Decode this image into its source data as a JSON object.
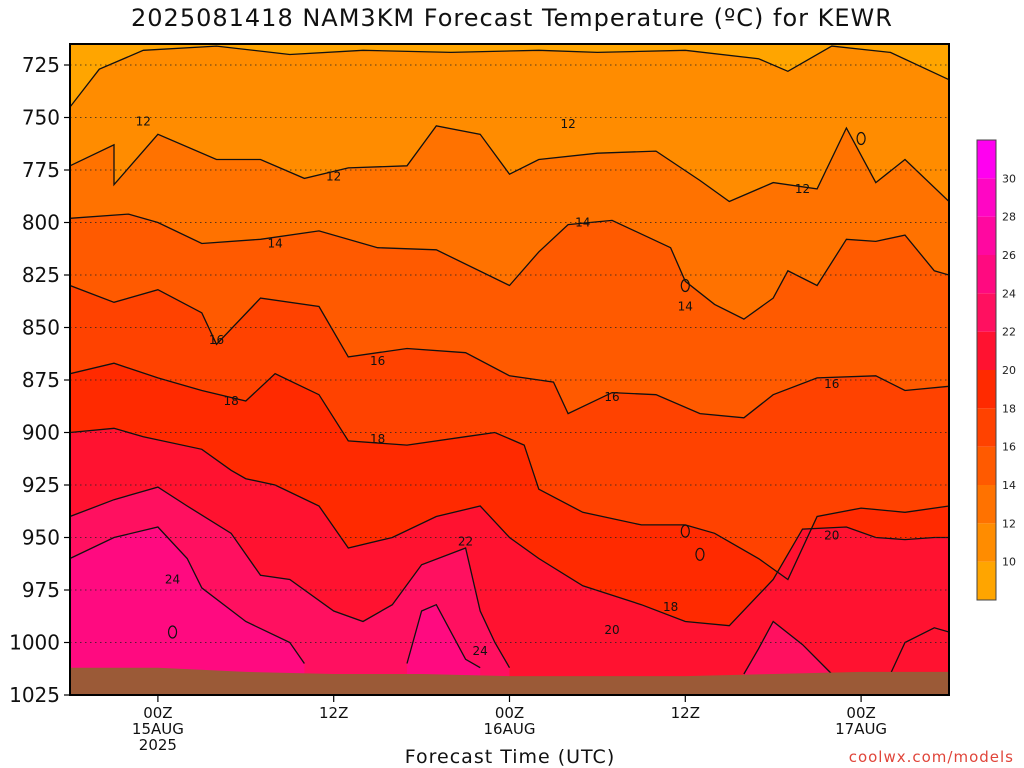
{
  "title": "2025081418 NAM3KM Forecast Temperature (ºC) for KEWR",
  "xlabel": "Forecast Time (UTC)",
  "credit": "coolwx.com/models",
  "chart_data": {
    "type": "heatmap",
    "subtype": "time-pressure contour cross-section",
    "title": "2025081418 NAM3KM Forecast Temperature (ºC) for KEWR",
    "xlabel": "Forecast Time (UTC)",
    "ylabel": "",
    "y_axis": {
      "inverted": true,
      "ylim": [
        1025,
        715
      ],
      "ticks": [
        725,
        750,
        775,
        800,
        825,
        850,
        875,
        900,
        925,
        950,
        975,
        1000,
        1025
      ]
    },
    "x_axis": {
      "xlim": [
        -6,
        54
      ],
      "ticks": [
        {
          "hours": 0,
          "lines": [
            "00Z",
            "15AUG",
            "2025"
          ]
        },
        {
          "hours": 12,
          "lines": [
            "12Z"
          ]
        },
        {
          "hours": 24,
          "lines": [
            "00Z",
            "16AUG"
          ]
        },
        {
          "hours": 36,
          "lines": [
            "12Z"
          ]
        },
        {
          "hours": 48,
          "lines": [
            "00Z",
            "17AUG"
          ]
        }
      ]
    },
    "grid": "dotted horizontal at y ticks",
    "colorbar": {
      "placement": "right",
      "range": [
        8,
        32
      ],
      "labels": [
        10,
        12,
        14,
        16,
        18,
        20,
        22,
        24,
        26,
        28,
        30
      ],
      "bands": [
        {
          "from": 8,
          "to": 10,
          "color": "#ffa500"
        },
        {
          "from": 10,
          "to": 12,
          "color": "#ff8c00"
        },
        {
          "from": 12,
          "to": 14,
          "color": "#ff7200"
        },
        {
          "from": 14,
          "to": 16,
          "color": "#ff5a00"
        },
        {
          "from": 16,
          "to": 18,
          "color": "#ff4200"
        },
        {
          "from": 18,
          "to": 20,
          "color": "#ff2a00"
        },
        {
          "from": 20,
          "to": 22,
          "color": "#ff1230"
        },
        {
          "from": 22,
          "to": 24,
          "color": "#ff1060"
        },
        {
          "from": 24,
          "to": 26,
          "color": "#ff0a80"
        },
        {
          "from": 26,
          "to": 28,
          "color": "#ff08a0"
        },
        {
          "from": 28,
          "to": 30,
          "color": "#ff06c4"
        },
        {
          "from": 30,
          "to": 32,
          "color": "#ff00f0"
        }
      ]
    },
    "ground_color": "#9b5a37",
    "ground_level": [
      {
        "x": -6,
        "p": 1012
      },
      {
        "x": 0,
        "p": 1012
      },
      {
        "x": 6,
        "p": 1014
      },
      {
        "x": 12,
        "p": 1015
      },
      {
        "x": 18,
        "p": 1015
      },
      {
        "x": 24,
        "p": 1016
      },
      {
        "x": 30,
        "p": 1016
      },
      {
        "x": 36,
        "p": 1016
      },
      {
        "x": 42,
        "p": 1015
      },
      {
        "x": 48,
        "p": 1014
      },
      {
        "x": 54,
        "p": 1014
      }
    ],
    "contours": [
      {
        "value": 10,
        "points": [
          [
            -6,
            745
          ],
          [
            -4,
            727
          ],
          [
            -1,
            718
          ],
          [
            4,
            716
          ],
          [
            9,
            720
          ],
          [
            14,
            718
          ],
          [
            20,
            719
          ],
          [
            26,
            718
          ],
          [
            30,
            719
          ],
          [
            36,
            718
          ],
          [
            41,
            722
          ],
          [
            43,
            728
          ],
          [
            46,
            716
          ],
          [
            50,
            719
          ],
          [
            54,
            732
          ]
        ]
      },
      {
        "value": 12,
        "points": [
          [
            -6,
            773
          ],
          [
            -3,
            763
          ],
          [
            -3,
            782
          ],
          [
            0,
            758
          ],
          [
            4,
            770
          ],
          [
            7,
            770
          ],
          [
            10,
            779
          ],
          [
            13,
            774
          ],
          [
            17,
            773
          ],
          [
            19,
            754
          ],
          [
            22,
            758
          ],
          [
            24,
            777
          ],
          [
            26,
            770
          ],
          [
            30,
            767
          ],
          [
            34,
            766
          ],
          [
            37,
            780
          ],
          [
            39,
            790
          ],
          [
            42,
            781
          ],
          [
            45,
            784
          ],
          [
            47,
            755
          ],
          [
            49,
            781
          ],
          [
            51,
            770
          ],
          [
            54,
            790
          ]
        ]
      },
      {
        "value": 14,
        "points": [
          [
            -6,
            798
          ],
          [
            -2,
            796
          ],
          [
            0,
            800
          ],
          [
            3,
            810
          ],
          [
            7,
            808
          ],
          [
            11,
            804
          ],
          [
            15,
            812
          ],
          [
            19,
            813
          ],
          [
            24,
            830
          ],
          [
            26,
            814
          ],
          [
            28,
            801
          ],
          [
            31,
            799
          ],
          [
            35,
            812
          ],
          [
            36,
            828
          ],
          [
            38,
            839
          ],
          [
            40,
            846
          ],
          [
            42,
            836
          ],
          [
            43,
            823
          ],
          [
            45,
            830
          ],
          [
            47,
            808
          ],
          [
            49,
            809
          ],
          [
            51,
            806
          ],
          [
            53,
            823
          ],
          [
            54,
            825
          ]
        ]
      },
      {
        "value": 16,
        "points": [
          [
            -6,
            830
          ],
          [
            -3,
            838
          ],
          [
            0,
            832
          ],
          [
            3,
            843
          ],
          [
            4,
            858
          ],
          [
            7,
            836
          ],
          [
            11,
            840
          ],
          [
            13,
            864
          ],
          [
            17,
            860
          ],
          [
            21,
            862
          ],
          [
            24,
            873
          ],
          [
            27,
            876
          ],
          [
            28,
            891
          ],
          [
            31,
            881
          ],
          [
            34,
            882
          ],
          [
            37,
            891
          ],
          [
            40,
            893
          ],
          [
            42,
            882
          ],
          [
            45,
            874
          ],
          [
            49,
            873
          ],
          [
            51,
            880
          ],
          [
            54,
            878
          ]
        ]
      },
      {
        "value": 18,
        "points": [
          [
            -6,
            872
          ],
          [
            -3,
            867
          ],
          [
            0,
            874
          ],
          [
            3,
            880
          ],
          [
            6,
            885
          ],
          [
            8,
            872
          ],
          [
            11,
            882
          ],
          [
            13,
            904
          ],
          [
            17,
            906
          ],
          [
            21,
            902
          ],
          [
            23,
            900
          ],
          [
            25,
            906
          ],
          [
            26,
            927
          ],
          [
            29,
            938
          ],
          [
            33,
            944
          ],
          [
            36,
            944
          ],
          [
            38,
            948
          ],
          [
            41,
            960
          ],
          [
            43,
            970
          ],
          [
            45,
            940
          ],
          [
            48,
            936
          ],
          [
            51,
            938
          ],
          [
            54,
            935
          ]
        ]
      },
      {
        "value": 20,
        "points": [
          [
            -6,
            900
          ],
          [
            -3,
            898
          ],
          [
            -1,
            902
          ],
          [
            3,
            908
          ],
          [
            5,
            918
          ],
          [
            6,
            922
          ],
          [
            8,
            925
          ],
          [
            11,
            935
          ],
          [
            13,
            955
          ],
          [
            16,
            950
          ],
          [
            19,
            940
          ],
          [
            22,
            935
          ],
          [
            24,
            950
          ],
          [
            26,
            960
          ],
          [
            29,
            973
          ],
          [
            33,
            982
          ],
          [
            36,
            990
          ],
          [
            39,
            992
          ],
          [
            42,
            970
          ],
          [
            44,
            946
          ],
          [
            47,
            945
          ],
          [
            49,
            950
          ],
          [
            51,
            951
          ],
          [
            53,
            950
          ],
          [
            54,
            950
          ]
        ]
      },
      {
        "value": 22,
        "points": [
          [
            -6,
            940
          ],
          [
            -3,
            932
          ],
          [
            0,
            926
          ],
          [
            2,
            935
          ],
          [
            5,
            948
          ],
          [
            7,
            968
          ],
          [
            9,
            970
          ],
          [
            12,
            985
          ],
          [
            14,
            990
          ],
          [
            16,
            982
          ],
          [
            18,
            963
          ],
          [
            21,
            955
          ],
          [
            22,
            985
          ],
          [
            23,
            1000
          ],
          [
            24,
            1012
          ]
        ]
      },
      {
        "value": 24,
        "points": [
          [
            -6,
            960
          ],
          [
            -3,
            950
          ],
          [
            0,
            945
          ],
          [
            2,
            960
          ],
          [
            3,
            974
          ],
          [
            6,
            990
          ],
          [
            9,
            1000
          ],
          [
            10,
            1010
          ]
        ]
      },
      {
        "value": 24,
        "points": [
          [
            17,
            1010
          ],
          [
            18,
            985
          ],
          [
            19,
            982
          ],
          [
            21,
            1008
          ],
          [
            22,
            1012
          ]
        ]
      },
      {
        "value": 22,
        "points": [
          [
            40,
            1015
          ],
          [
            41,
            1003
          ],
          [
            42,
            990
          ],
          [
            44,
            1001
          ],
          [
            46,
            1015
          ]
        ]
      },
      {
        "value": 20,
        "points": [
          [
            50,
            1015
          ],
          [
            51,
            1000
          ],
          [
            53,
            993
          ],
          [
            54,
            995
          ]
        ]
      }
    ],
    "contour_labels": [
      {
        "value": 12,
        "x": -1,
        "p": 752
      },
      {
        "value": 12,
        "x": 12,
        "p": 778
      },
      {
        "value": 12,
        "x": 28,
        "p": 753
      },
      {
        "value": 12,
        "x": 44,
        "p": 784
      },
      {
        "value": 14,
        "x": 8,
        "p": 810
      },
      {
        "value": 14,
        "x": 29,
        "p": 800
      },
      {
        "value": 14,
        "x": 36,
        "p": 840
      },
      {
        "value": 16,
        "x": 4,
        "p": 856
      },
      {
        "value": 16,
        "x": 15,
        "p": 866
      },
      {
        "value": 16,
        "x": 31,
        "p": 883
      },
      {
        "value": 16,
        "x": 46,
        "p": 877
      },
      {
        "value": 18,
        "x": 5,
        "p": 885
      },
      {
        "value": 18,
        "x": 15,
        "p": 903
      },
      {
        "value": 18,
        "x": 35,
        "p": 983
      },
      {
        "value": 20,
        "x": 31,
        "p": 994
      },
      {
        "value": 20,
        "x": 46,
        "p": 949
      },
      {
        "value": 22,
        "x": 21,
        "p": 952
      },
      {
        "value": 24,
        "x": 1,
        "p": 970
      },
      {
        "value": 24,
        "x": 22,
        "p": 1004
      }
    ],
    "point_annotations": [
      {
        "value": 12,
        "x": 48,
        "p": 760
      },
      {
        "value": 14,
        "x": 36,
        "p": 830
      },
      {
        "value": 18,
        "x": 36,
        "p": 947
      },
      {
        "value": 20,
        "x": 37,
        "p": 958
      },
      {
        "value": 24,
        "x": 1,
        "p": 995
      }
    ]
  }
}
